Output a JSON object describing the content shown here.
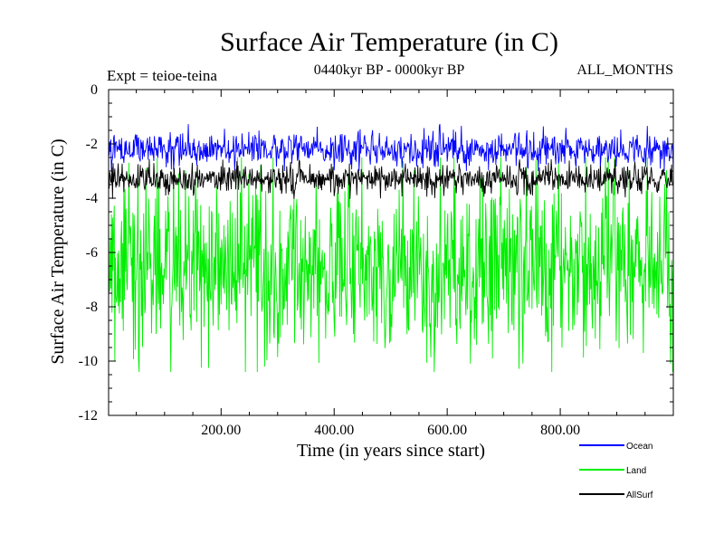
{
  "chart_data": {
    "type": "line",
    "title": "Surface Air Temperature (in C)",
    "subtitle": "0440kyr BP - 0000kyr BP",
    "experiment": "Expt = teioe-teina",
    "months_label": "ALL_MONTHS",
    "xlabel": "Time (in years since start)",
    "ylabel": "Surface Air Temperature (in C)",
    "xlim": [
      1,
      1000
    ],
    "ylim": [
      -12,
      0
    ],
    "x_ticks": [
      200,
      400,
      600,
      800
    ],
    "x_tick_labels": [
      "200.00",
      "400.00",
      "600.00",
      "800.00"
    ],
    "y_ticks": [
      0,
      -2,
      -4,
      -6,
      -8,
      -10,
      -12
    ],
    "y_tick_labels": [
      "0",
      "-2",
      "-4",
      "-6",
      "-8",
      "-10",
      "-12"
    ],
    "grid": false,
    "legend_position": "bottom-right",
    "series": [
      {
        "name": "Land",
        "color": "#00ee00",
        "mean": -6.5,
        "typical_range": [
          -9.4,
          -3.6
        ],
        "extremes": [
          -10.4,
          -2.5
        ],
        "note": "high-frequency annual-resolution series, 1000 values"
      },
      {
        "name": "AllSurf",
        "color": "#000000",
        "mean": -3.3,
        "typical_range": [
          -3.8,
          -2.9
        ],
        "extremes": [
          -4.1,
          -2.5
        ],
        "note": "high-frequency annual-resolution series, 1000 values"
      },
      {
        "name": "Ocean",
        "color": "#0000ff",
        "mean": -2.2,
        "typical_range": [
          -2.7,
          -1.6
        ],
        "extremes": [
          -3.0,
          -1.1
        ],
        "note": "high-frequency annual-resolution series, 1000 values"
      }
    ],
    "legend": [
      {
        "name": "Ocean",
        "color": "#0000ff"
      },
      {
        "name": "Land",
        "color": "#00ee00"
      },
      {
        "name": "AllSurf",
        "color": "#000000"
      }
    ]
  }
}
